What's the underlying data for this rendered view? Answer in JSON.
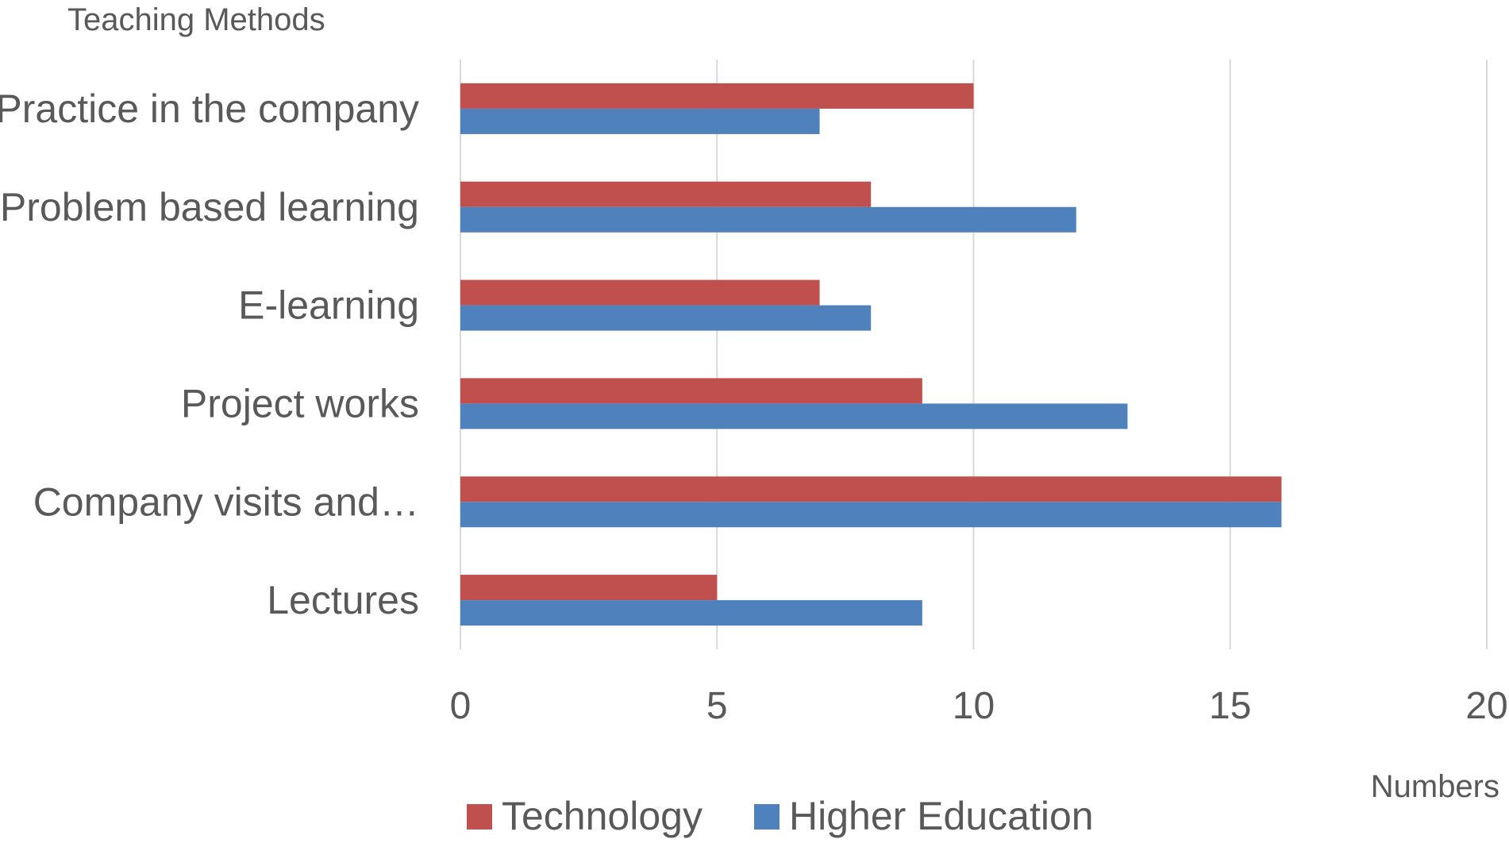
{
  "chart_data": {
    "type": "bar",
    "orientation": "horizontal",
    "ylabel": "Teaching Methods",
    "xlabel": "Numbers",
    "categories": [
      "Lectures",
      "Company visits and…",
      "Project works",
      "E-learning",
      "Problem based learning",
      "Practice in the company"
    ],
    "series": [
      {
        "name": "Technology",
        "color": "#C0504D",
        "values": [
          5,
          16,
          9,
          7,
          8,
          10
        ]
      },
      {
        "name": "Higher Education",
        "color": "#4F81BD",
        "values": [
          9,
          16,
          13,
          8,
          12,
          7
        ]
      }
    ],
    "xlim": [
      0,
      20
    ],
    "xticks": [
      0,
      5,
      10,
      15,
      20
    ],
    "grid": true,
    "gridline_color": "#D9D9D9",
    "legend_position": "bottom"
  }
}
